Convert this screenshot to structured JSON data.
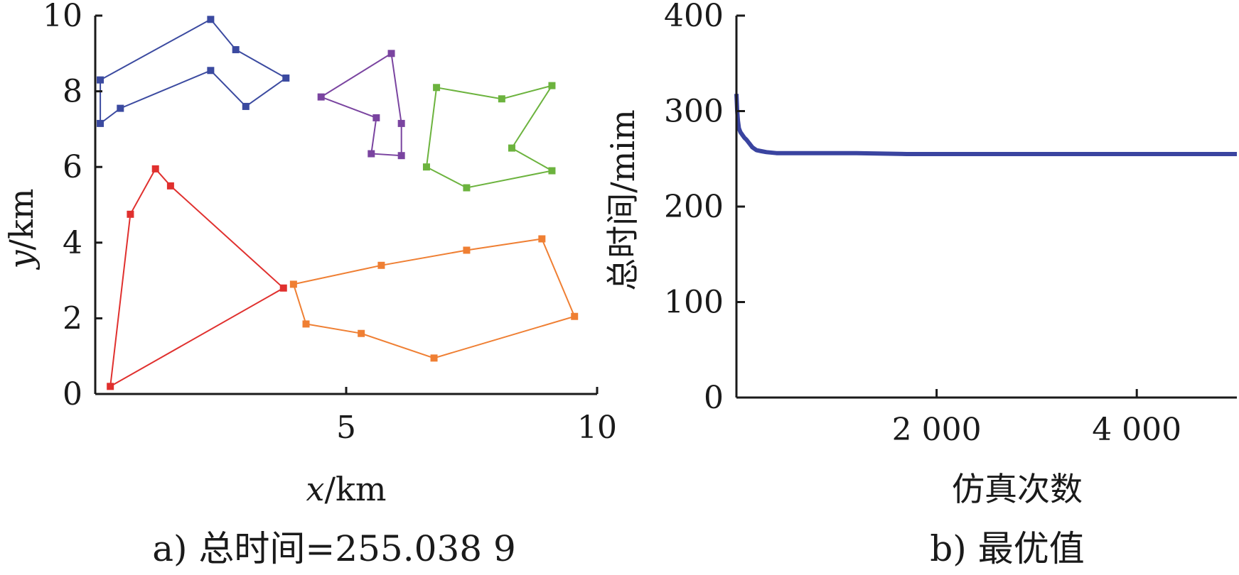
{
  "chart_data": [
    {
      "type": "line",
      "xlim": [
        0,
        10
      ],
      "ylim": [
        0,
        10
      ],
      "xticks": [
        "5",
        "10"
      ],
      "yticks": [
        "0",
        "2",
        "4",
        "6",
        "8",
        "10"
      ],
      "xlabel": {
        "var": "x",
        "unit": "/km"
      },
      "ylabel": {
        "var": "y",
        "unit": "/km"
      },
      "caption": "a) 总时间=255.038 9",
      "series": [
        {
          "color": "#3b4aa0",
          "points": [
            [
              0.1,
              8.3
            ],
            [
              2.3,
              9.9
            ],
            [
              2.8,
              9.1
            ],
            [
              3.8,
              8.35
            ],
            [
              3.0,
              7.6
            ],
            [
              2.3,
              8.55
            ],
            [
              0.5,
              7.55
            ],
            [
              0.1,
              7.15
            ],
            [
              0.1,
              8.3
            ]
          ]
        },
        {
          "color": "#7a44a0",
          "points": [
            [
              4.5,
              7.85
            ],
            [
              5.9,
              9.0
            ],
            [
              6.1,
              7.15
            ],
            [
              6.1,
              6.3
            ],
            [
              5.5,
              6.35
            ],
            [
              5.6,
              7.3
            ],
            [
              4.5,
              7.85
            ]
          ]
        },
        {
          "color": "#6cb33e",
          "points": [
            [
              6.8,
              8.1
            ],
            [
              8.1,
              7.8
            ],
            [
              9.1,
              8.15
            ],
            [
              8.3,
              6.5
            ],
            [
              9.1,
              5.9
            ],
            [
              7.4,
              5.45
            ],
            [
              6.6,
              6.0
            ],
            [
              6.8,
              8.1
            ]
          ]
        },
        {
          "color": "#e0302e",
          "points": [
            [
              0.3,
              0.2
            ],
            [
              0.7,
              4.75
            ],
            [
              1.2,
              5.95
            ],
            [
              1.5,
              5.5
            ],
            [
              3.75,
              2.8
            ],
            [
              0.3,
              0.2
            ]
          ]
        },
        {
          "color": "#ef7f33",
          "points": [
            [
              3.95,
              2.9
            ],
            [
              5.7,
              3.4
            ],
            [
              7.4,
              3.8
            ],
            [
              8.9,
              4.1
            ],
            [
              9.55,
              2.05
            ],
            [
              6.75,
              0.95
            ],
            [
              5.3,
              1.6
            ],
            [
              4.2,
              1.85
            ],
            [
              3.95,
              2.9
            ]
          ]
        }
      ]
    },
    {
      "type": "line",
      "xlim": [
        0,
        5000
      ],
      "ylim": [
        0,
        400
      ],
      "xticks": [
        "2 000",
        "4 000"
      ],
      "yticks": [
        "0",
        "100",
        "200",
        "300",
        "400"
      ],
      "xlabel": "仿真次数",
      "ylabel": "总时间/mim",
      "caption": "b) 最优值",
      "series": [
        {
          "color": "#3a44a0",
          "x": [
            0,
            8,
            15,
            25,
            40,
            60,
            80,
            100,
            130,
            160,
            200,
            250,
            300,
            400,
            500,
            800,
            1200,
            1700,
            2000,
            3000,
            4000,
            5000
          ],
          "y": [
            318,
            300,
            290,
            282,
            278,
            275,
            272,
            270,
            266,
            262,
            259,
            258,
            257,
            256,
            256,
            256,
            256,
            255,
            255,
            255,
            255,
            255
          ]
        }
      ]
    }
  ]
}
